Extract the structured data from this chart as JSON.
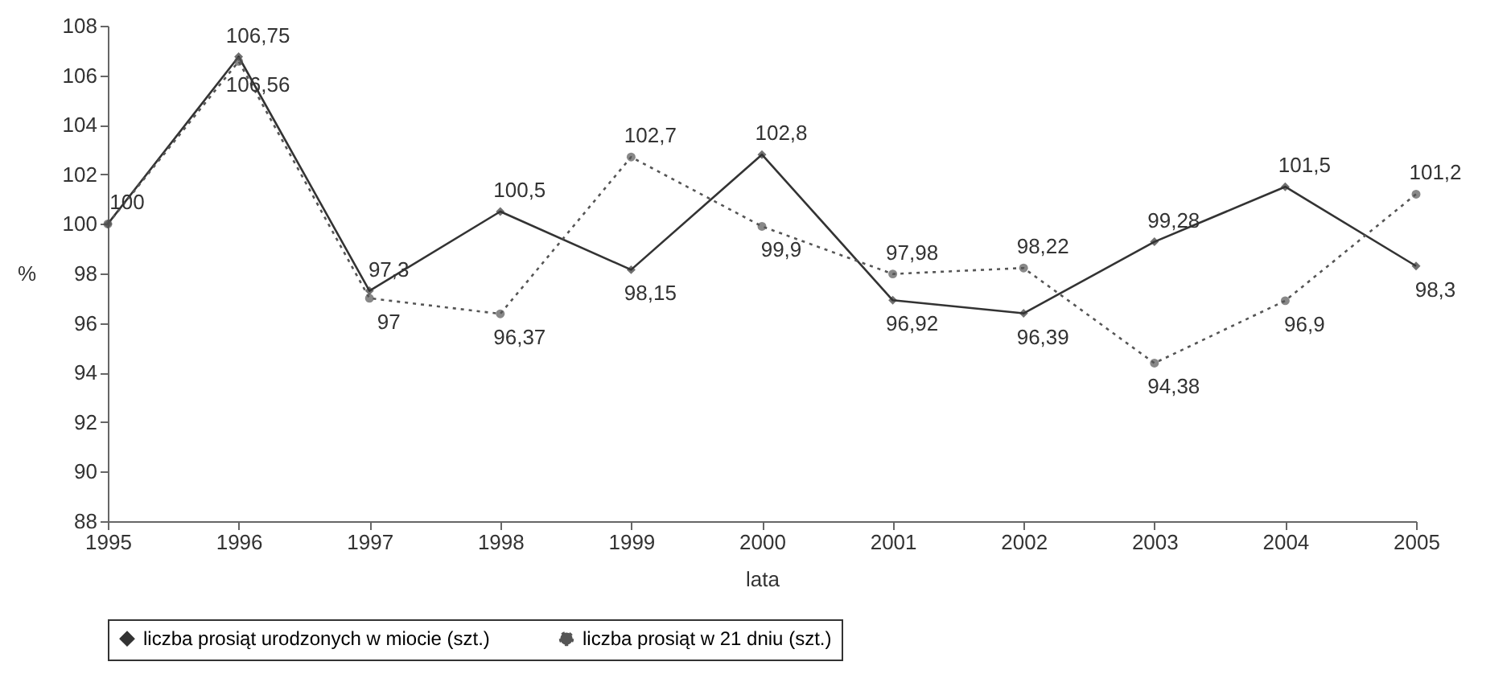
{
  "chart_data": {
    "type": "line",
    "xlabel": "lata",
    "ylabel": "%",
    "x": [
      1995,
      1996,
      1997,
      1998,
      1999,
      2000,
      2001,
      2002,
      2003,
      2004,
      2005
    ],
    "series": [
      {
        "name": "liczba prosiąt urodzonych w miocie (szt.)",
        "color": "#333333",
        "marker": "diamond",
        "line_style": "solid",
        "values": [
          100,
          106.75,
          97.3,
          100.5,
          98.15,
          102.8,
          96.92,
          96.39,
          99.28,
          101.5,
          98.3
        ],
        "value_labels": [
          "100",
          "106,75",
          "97,3",
          "100,5",
          "98,15",
          "102,8",
          "96,92",
          "96,39",
          "99,28",
          "101,5",
          "98,3"
        ]
      },
      {
        "name": "liczba prosiąt w 21 dniu (szt.)",
        "color": "#555555",
        "marker": "circle",
        "line_style": "dotted",
        "values": [
          100,
          106.56,
          97,
          96.37,
          102.7,
          99.9,
          97.98,
          98.22,
          94.38,
          96.9,
          101.2
        ],
        "value_labels": [
          null,
          "106,56",
          "97",
          "96,37",
          "102,7",
          "99,9",
          "97,98",
          "98,22",
          "94,38",
          "96,9",
          "101,2"
        ]
      }
    ],
    "xlim": [
      1995,
      2005
    ],
    "xticks": [
      1995,
      1996,
      1997,
      1998,
      1999,
      2000,
      2001,
      2002,
      2003,
      2004,
      2005
    ],
    "ylim": [
      88,
      108
    ],
    "yticks": [
      88,
      90,
      92,
      94,
      96,
      98,
      100,
      102,
      104,
      106,
      108
    ],
    "grid": false,
    "legend": "bottom"
  }
}
